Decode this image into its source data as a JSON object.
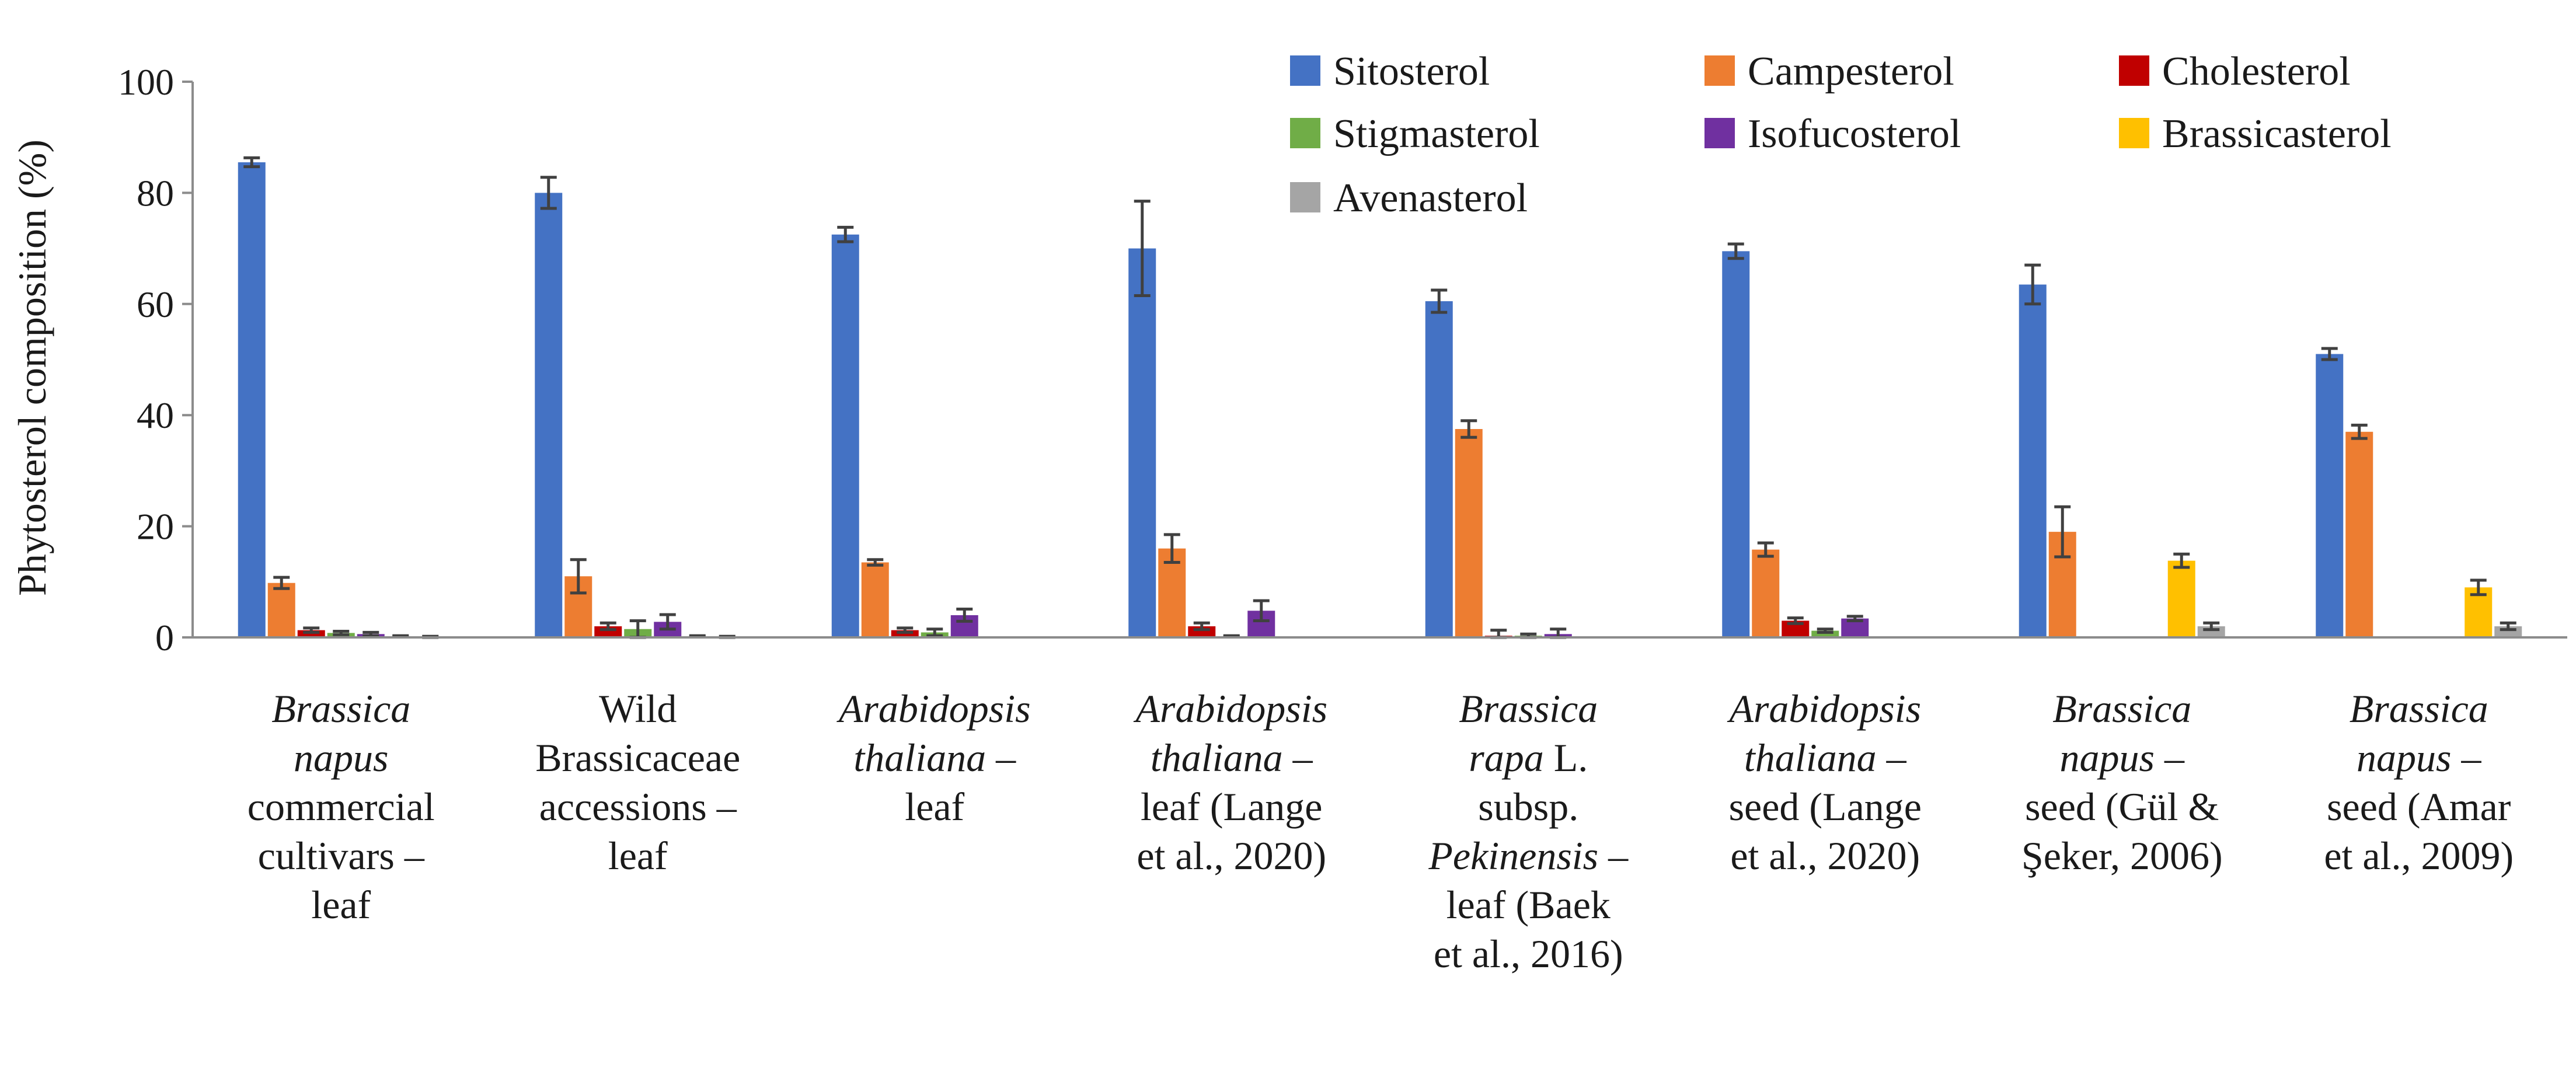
{
  "chart_data": {
    "type": "bar",
    "title": "",
    "xlabel": "",
    "ylabel": "Phytosterol composition (%)",
    "ylim": [
      0,
      100
    ],
    "yticks": [
      "0",
      "20",
      "40",
      "60",
      "80",
      "100"
    ],
    "grid": false,
    "legend_position": "top-right",
    "categories": [
      [
        [
          {
            "text": "Brassica",
            "italic": true
          }
        ],
        [
          {
            "text": "napus",
            "italic": true
          }
        ],
        [
          {
            "text": "commercial",
            "italic": false
          }
        ],
        [
          {
            "text": "cultivars –",
            "italic": false
          }
        ],
        [
          {
            "text": "leaf",
            "italic": false
          }
        ]
      ],
      [
        [
          {
            "text": "Wild",
            "italic": false
          }
        ],
        [
          {
            "text": "Brassicaceae",
            "italic": false
          }
        ],
        [
          {
            "text": "accessions –",
            "italic": false
          }
        ],
        [
          {
            "text": "leaf",
            "italic": false
          }
        ]
      ],
      [
        [
          {
            "text": "Arabidopsis",
            "italic": true
          }
        ],
        [
          {
            "text": "thaliana",
            "italic": true
          },
          {
            "text": " –",
            "italic": false
          }
        ],
        [
          {
            "text": "leaf",
            "italic": false
          }
        ]
      ],
      [
        [
          {
            "text": "Arabidopsis",
            "italic": true
          }
        ],
        [
          {
            "text": "thaliana",
            "italic": true
          },
          {
            "text": " –",
            "italic": false
          }
        ],
        [
          {
            "text": "leaf (Lange",
            "italic": false
          }
        ],
        [
          {
            "text": "et al., 2020)",
            "italic": false
          }
        ]
      ],
      [
        [
          {
            "text": "Brassica",
            "italic": true
          }
        ],
        [
          {
            "text": "rapa",
            "italic": true
          },
          {
            "text": " L.",
            "italic": false
          }
        ],
        [
          {
            "text": "subsp.",
            "italic": false
          }
        ],
        [
          {
            "text": "Pekinensis",
            "italic": true
          },
          {
            "text": " –",
            "italic": false
          }
        ],
        [
          {
            "text": "leaf (Baek",
            "italic": false
          }
        ],
        [
          {
            "text": "et al., 2016)",
            "italic": false
          }
        ]
      ],
      [
        [
          {
            "text": "Arabidopsis",
            "italic": true
          }
        ],
        [
          {
            "text": "thaliana",
            "italic": true
          },
          {
            "text": " –",
            "italic": false
          }
        ],
        [
          {
            "text": "seed (Lange",
            "italic": false
          }
        ],
        [
          {
            "text": "et al., 2020)",
            "italic": false
          }
        ]
      ],
      [
        [
          {
            "text": "Brassica",
            "italic": true
          }
        ],
        [
          {
            "text": "napus",
            "italic": true
          },
          {
            "text": " –",
            "italic": false
          }
        ],
        [
          {
            "text": "seed (Gül &",
            "italic": false
          }
        ],
        [
          {
            "text": "Şeker, 2006)",
            "italic": false
          }
        ]
      ],
      [
        [
          {
            "text": "Brassica",
            "italic": true
          }
        ],
        [
          {
            "text": "napus",
            "italic": true
          },
          {
            "text": " –",
            "italic": false
          }
        ],
        [
          {
            "text": "seed (Amar",
            "italic": false
          }
        ],
        [
          {
            "text": "et al., 2009)",
            "italic": false
          }
        ]
      ]
    ],
    "series": [
      {
        "name": "Sitosterol",
        "color": "#4472C4",
        "values": [
          85.5,
          80,
          72.5,
          70,
          60.5,
          69.5,
          63.5,
          51
        ],
        "errors": [
          0.8,
          2.8,
          1.3,
          8.5,
          2,
          1.3,
          3.5,
          1
        ]
      },
      {
        "name": "Campesterol",
        "color": "#ED7D31",
        "values": [
          9.8,
          11,
          13.5,
          16,
          37.5,
          15.8,
          19,
          37
        ],
        "errors": [
          1,
          3,
          0.5,
          2.5,
          1.5,
          1.2,
          4.5,
          1.2
        ]
      },
      {
        "name": "Cholesterol",
        "color": "#C00000",
        "values": [
          1.3,
          2,
          1.3,
          2,
          0.3,
          3,
          0,
          0
        ],
        "errors": [
          0.4,
          0.6,
          0.4,
          0.6,
          1,
          0.5,
          0,
          0
        ]
      },
      {
        "name": "Stigmasterol",
        "color": "#70AD47",
        "values": [
          0.8,
          1.5,
          0.9,
          0.2,
          0.3,
          1.2,
          0,
          0
        ],
        "errors": [
          0.3,
          1.5,
          0.6,
          0.1,
          0.3,
          0.3,
          0,
          0
        ]
      },
      {
        "name": "Isofucosterol",
        "color": "#7030A0",
        "values": [
          0.6,
          2.8,
          4,
          4.8,
          0.6,
          3.4,
          0,
          0
        ],
        "errors": [
          0.3,
          1.3,
          1.1,
          1.8,
          0.9,
          0.4,
          0,
          0
        ]
      },
      {
        "name": "Brassicasterol",
        "color": "#FFC000",
        "values": [
          0.2,
          0.2,
          0,
          0,
          0,
          0,
          13.8,
          9
        ],
        "errors": [
          0.1,
          0.1,
          0,
          0,
          0,
          0,
          1.2,
          1.3
        ]
      },
      {
        "name": "Avenasterol",
        "color": "#A5A5A5",
        "values": [
          0.1,
          0.1,
          0,
          0,
          0,
          0,
          2,
          2
        ],
        "errors": [
          0.1,
          0.1,
          0,
          0,
          0,
          0,
          0.6,
          0.6
        ]
      }
    ]
  }
}
